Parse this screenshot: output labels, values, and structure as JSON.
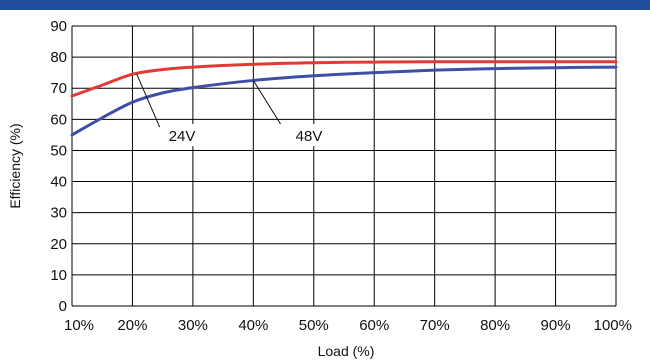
{
  "chart_data": {
    "type": "line",
    "title": "",
    "xlabel": "Load (%)",
    "ylabel": "Efficiency (%)",
    "x_ticks": [
      "10%",
      "20%",
      "30%",
      "40%",
      "50%",
      "60%",
      "70%",
      "80%",
      "90%",
      "100%"
    ],
    "y_ticks": [
      "0",
      "10",
      "20",
      "30",
      "40",
      "50",
      "60",
      "70",
      "80",
      "90"
    ],
    "xlim": [
      10,
      100
    ],
    "ylim": [
      0,
      90
    ],
    "grid": true,
    "legend": "none",
    "series": [
      {
        "name": "24V",
        "color": "#e23a32",
        "x": [
          10,
          15,
          20,
          25,
          30,
          40,
          50,
          60,
          70,
          80,
          90,
          100
        ],
        "y": [
          67.5,
          71,
          74.5,
          76,
          76.8,
          77.7,
          78.2,
          78.4,
          78.5,
          78.5,
          78.5,
          78.5
        ]
      },
      {
        "name": "48V",
        "color": "#3f4fa5",
        "x": [
          10,
          15,
          20,
          25,
          30,
          40,
          50,
          60,
          70,
          80,
          90,
          100
        ],
        "y": [
          55,
          60.5,
          65.5,
          68.5,
          70.2,
          72.5,
          74,
          75,
          75.8,
          76.3,
          76.6,
          76.8
        ]
      }
    ]
  },
  "colors": {
    "top_band": "#1f4e9c",
    "grid": "#000000"
  }
}
